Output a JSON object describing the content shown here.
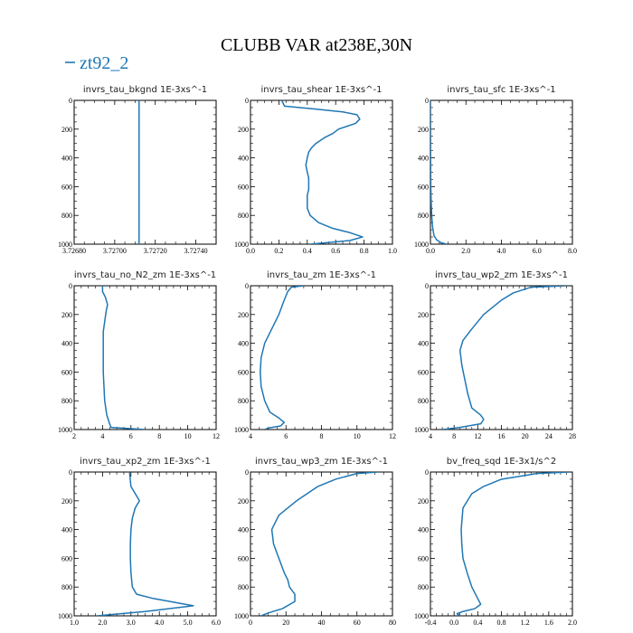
{
  "figure": {
    "title": "CLUBB VAR at238E,30N",
    "legend": [
      {
        "label": "zt92_2",
        "color": "#1f77b4"
      }
    ],
    "line_color": "#1f77b4"
  },
  "chart_data": [
    {
      "type": "line",
      "title": "invrs_tau_bkgnd   1E-3xs^-1",
      "xlim": [
        3.7268,
        3.7275
      ],
      "ylim": [
        1000,
        0
      ],
      "xticks": [
        3.7268,
        3.727,
        3.7272,
        3.7274
      ],
      "xtick_labels": [
        "3.72680",
        "3.72700",
        "3.72720",
        "3.72740"
      ],
      "yticks": [
        0,
        200,
        400,
        600,
        800,
        1000
      ],
      "ytick_labels": [
        "0",
        "200",
        "400",
        "600",
        "800",
        "1000"
      ],
      "series": [
        {
          "x": [
            3.72712,
            3.72712
          ],
          "y": [
            0,
            1000
          ]
        }
      ]
    },
    {
      "type": "line",
      "title": "invrs_tau_shear   1E-3xs^-1",
      "xlim": [
        0,
        1.0
      ],
      "ylim": [
        1000,
        0
      ],
      "xticks": [
        0,
        0.2,
        0.4,
        0.6,
        0.8,
        1.0
      ],
      "xtick_labels": [
        "0.0",
        "0.2",
        "0.4",
        "0.6",
        "0.8",
        "1.0"
      ],
      "yticks": [
        0,
        200,
        400,
        600,
        800,
        1000
      ],
      "ytick_labels": [
        "0",
        "200",
        "400",
        "600",
        "800",
        "1000"
      ],
      "series": [
        {
          "x": [
            0.22,
            0.24,
            0.45,
            0.65,
            0.75,
            0.77,
            0.74,
            0.62,
            0.58,
            0.52,
            0.46,
            0.43,
            0.41,
            0.4,
            0.39,
            0.4,
            0.41,
            0.41,
            0.41,
            0.4,
            0.4,
            0.4,
            0.42,
            0.48,
            0.58,
            0.7,
            0.79,
            0.7,
            0.42
          ],
          "y": [
            0,
            40,
            60,
            80,
            100,
            130,
            160,
            200,
            230,
            260,
            300,
            330,
            360,
            400,
            450,
            500,
            540,
            580,
            620,
            660,
            700,
            750,
            800,
            850,
            890,
            920,
            950,
            975,
            1000
          ]
        }
      ]
    },
    {
      "type": "line",
      "title": "invrs_tau_sfc   1E-3xs^-1",
      "xlim": [
        0,
        8.0
      ],
      "ylim": [
        1000,
        0
      ],
      "xticks": [
        0,
        2.0,
        4.0,
        6.0,
        8.0
      ],
      "xtick_labels": [
        "0.0",
        "2.0",
        "4.0",
        "6.0",
        "8.0"
      ],
      "yticks": [
        0,
        200,
        400,
        600,
        800,
        1000
      ],
      "ytick_labels": [
        "0",
        "200",
        "400",
        "600",
        "800",
        "1000"
      ],
      "series": [
        {
          "x": [
            0.0,
            0.005,
            0.01,
            0.02,
            0.04,
            0.07,
            0.12,
            0.2,
            0.35,
            0.6,
            0.9
          ],
          "y": [
            0,
            200,
            400,
            600,
            700,
            800,
            880,
            940,
            970,
            990,
            1000
          ]
        }
      ]
    },
    {
      "type": "line",
      "title": "invrs_tau_no_N2_zm   1E-3xs^-1",
      "xlim": [
        2,
        12
      ],
      "ylim": [
        1000,
        0
      ],
      "xticks": [
        2,
        4,
        6,
        8,
        10,
        12
      ],
      "xtick_labels": [
        "2",
        "4",
        "6",
        "8",
        "10",
        "12"
      ],
      "yticks": [
        0,
        200,
        400,
        600,
        800,
        1000
      ],
      "ytick_labels": [
        "0",
        "200",
        "400",
        "600",
        "800",
        "1000"
      ],
      "series": [
        {
          "x": [
            4.0,
            4.0,
            4.2,
            4.35,
            4.25,
            4.15,
            4.05,
            4.05,
            4.05,
            4.05,
            4.1,
            4.15,
            4.3,
            4.5,
            4.6,
            7.0
          ],
          "y": [
            0,
            40,
            80,
            130,
            180,
            250,
            320,
            400,
            500,
            600,
            700,
            800,
            900,
            960,
            985,
            1000
          ]
        }
      ]
    },
    {
      "type": "line",
      "title": "invrs_tau_zm   1E-3xs^-1",
      "xlim": [
        4,
        12
      ],
      "ylim": [
        1000,
        0
      ],
      "xticks": [
        4,
        6,
        8,
        10,
        12
      ],
      "xtick_labels": [
        "4",
        "6",
        "8",
        "10",
        "12"
      ],
      "yticks": [
        0,
        200,
        400,
        600,
        800,
        1000
      ],
      "ytick_labels": [
        "0",
        "200",
        "400",
        "600",
        "800",
        "1000"
      ],
      "series": [
        {
          "x": [
            7.0,
            6.3,
            6.1,
            5.9,
            5.6,
            5.2,
            4.8,
            4.6,
            4.55,
            4.6,
            4.8,
            5.1,
            5.6,
            5.9,
            5.7,
            5.0,
            4.8
          ],
          "y": [
            0,
            10,
            40,
            100,
            200,
            300,
            400,
            500,
            600,
            700,
            800,
            880,
            920,
            950,
            975,
            990,
            1000
          ]
        }
      ]
    },
    {
      "type": "line",
      "title": "invrs_tau_wp2_zm   1E-3xs^-1",
      "xlim": [
        4,
        28
      ],
      "ylim": [
        1000,
        0
      ],
      "xticks": [
        4,
        8,
        12,
        16,
        20,
        24,
        28
      ],
      "xtick_labels": [
        "4",
        "8",
        "12",
        "16",
        "20",
        "24",
        "28"
      ],
      "yticks": [
        0,
        200,
        400,
        600,
        800,
        1000
      ],
      "ytick_labels": [
        "0",
        "200",
        "400",
        "600",
        "800",
        "1000"
      ],
      "series": [
        {
          "x": [
            27.0,
            21.0,
            18.0,
            16.0,
            13.0,
            11.0,
            9.5,
            9.0,
            9.3,
            9.8,
            10.3,
            11.0,
            12.5,
            13.0,
            12.5,
            9.0,
            6.0
          ],
          "y": [
            0,
            10,
            50,
            100,
            200,
            300,
            380,
            450,
            550,
            650,
            750,
            850,
            900,
            930,
            960,
            985,
            1000
          ]
        }
      ]
    },
    {
      "type": "line",
      "title": "invrs_tau_xp2_zm   1E-3xs^-1",
      "xlim": [
        1.0,
        6.0
      ],
      "ylim": [
        1000,
        0
      ],
      "xticks": [
        1.0,
        2.0,
        3.0,
        4.0,
        5.0,
        6.0
      ],
      "xtick_labels": [
        "1.0",
        "2.0",
        "3.0",
        "4.0",
        "5.0",
        "6.0"
      ],
      "yticks": [
        0,
        200,
        400,
        600,
        800,
        1000
      ],
      "ytick_labels": [
        "0",
        "200",
        "400",
        "600",
        "800",
        "1000"
      ],
      "series": [
        {
          "x": [
            2.95,
            3.0,
            3.15,
            3.3,
            3.15,
            3.05,
            3.0,
            2.98,
            2.98,
            3.0,
            3.05,
            3.2,
            3.8,
            5.2,
            3.5,
            1.8
          ],
          "y": [
            0,
            100,
            150,
            200,
            250,
            320,
            400,
            500,
            600,
            700,
            800,
            850,
            880,
            930,
            970,
            1000
          ]
        }
      ]
    },
    {
      "type": "line",
      "title": "invrs_tau_wp3_zm   1E-3xs^-1",
      "xlim": [
        0,
        80
      ],
      "ylim": [
        1000,
        0
      ],
      "xticks": [
        0,
        20,
        40,
        60,
        80
      ],
      "xtick_labels": [
        "0",
        "20",
        "40",
        "60",
        "80"
      ],
      "yticks": [
        0,
        200,
        400,
        600,
        800,
        1000
      ],
      "ytick_labels": [
        "0",
        "200",
        "400",
        "600",
        "800",
        "1000"
      ],
      "series": [
        {
          "x": [
            72,
            60,
            48,
            38,
            26,
            16,
            12,
            13,
            16,
            19,
            21,
            22,
            25,
            25,
            18,
            10,
            6
          ],
          "y": [
            0,
            10,
            50,
            100,
            200,
            300,
            400,
            500,
            600,
            700,
            750,
            800,
            850,
            900,
            950,
            980,
            1000
          ]
        }
      ]
    },
    {
      "type": "line",
      "title": "bv_freq_sqd   1E-3x1/s^2",
      "xlim": [
        -0.4,
        2.0
      ],
      "ylim": [
        1000,
        0
      ],
      "xticks": [
        -0.4,
        0.0,
        0.4,
        0.8,
        1.2,
        1.6,
        2.0
      ],
      "xtick_labels": [
        "-0.4",
        "0.0",
        "0.4",
        "0.8",
        "1.2",
        "1.6",
        "2.0"
      ],
      "yticks": [
        0,
        200,
        400,
        600,
        800,
        1000
      ],
      "ytick_labels": [
        "0",
        "200",
        "400",
        "600",
        "800",
        "1000"
      ],
      "series": [
        {
          "x": [
            1.95,
            1.4,
            0.8,
            0.5,
            0.3,
            0.15,
            0.12,
            0.13,
            0.15,
            0.22,
            0.3,
            0.4,
            0.45,
            0.35,
            0.15,
            0.05,
            0.1
          ],
          "y": [
            0,
            10,
            50,
            100,
            150,
            250,
            400,
            500,
            600,
            700,
            800,
            880,
            920,
            950,
            970,
            985,
            1000
          ]
        }
      ]
    }
  ]
}
